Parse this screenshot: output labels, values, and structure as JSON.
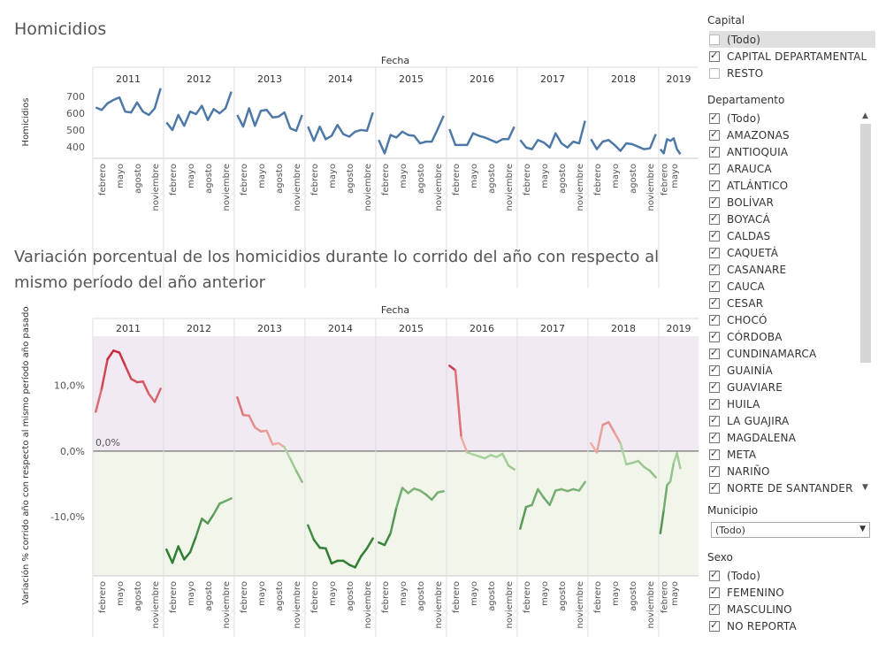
{
  "chart1_title": "Homicidios",
  "chart2_title": "Variación porcentual de los homicidios durante lo corrido del año con respecto al mismo período del año anterior",
  "chart1": {
    "header": "Fecha",
    "ylabel": "Homicidios",
    "years": [
      "2011",
      "2012",
      "2013",
      "2014",
      "2015",
      "2016",
      "2017",
      "2018",
      "2019"
    ],
    "month_labels": [
      "febrero",
      "mayo",
      "agosto",
      "noviembre"
    ],
    "yticks": [
      "700",
      "600",
      "500",
      "400"
    ]
  },
  "chart2": {
    "header": "Fecha",
    "ylabel": "Variación % corrido año con respecto al mismo período año pasado",
    "yticks": [
      "10,0%",
      "0,0%",
      "-10,0%"
    ],
    "ref_label": "0,0%"
  },
  "sidebar": {
    "capital_title": "Capital",
    "capital_items": [
      {
        "label": "(Todo)",
        "checked": false
      },
      {
        "label": "CAPITAL DEPARTAMENTAL",
        "checked": true
      },
      {
        "label": "RESTO",
        "checked": false
      }
    ],
    "departamento_title": "Departamento",
    "departamento_items": [
      "(Todo)",
      "AMAZONAS",
      "ANTIOQUIA",
      "ARAUCA",
      "ATLÁNTICO",
      "BOLÍVAR",
      "BOYACÁ",
      "CALDAS",
      "CAQUETÁ",
      "CASANARE",
      "CAUCA",
      "CESAR",
      "CHOCÓ",
      "CÓRDOBA",
      "CUNDINAMARCA",
      "GUAINÍA",
      "GUAVIARE",
      "HUILA",
      "LA GUAJIRA",
      "MAGDALENA",
      "META",
      "NARIÑO",
      "NORTE DE SANTANDER"
    ],
    "municipio_title": "Municipio",
    "municipio_value": "(Todo)",
    "sexo_title": "Sexo",
    "sexo_items": [
      "(Todo)",
      "FEMENINO",
      "MASCULINO",
      "NO REPORTA"
    ]
  },
  "colors": {
    "line_blue": "#4e79a7",
    "pos_band": "#f1eaf3",
    "neg_band": "#f1f5ea",
    "red_strong": "#c8283d",
    "green_strong": "#2f7d32"
  },
  "chart_data": [
    {
      "type": "line",
      "title": "Homicidios",
      "xlabel": "Fecha",
      "ylabel": "Homicidios",
      "ylim": [
        330,
        770
      ],
      "series": [
        {
          "values": [
            635,
            620,
            660,
            680,
            695,
            610,
            605,
            665,
            610,
            590,
            630,
            750,
            545,
            500,
            590,
            525,
            610,
            595,
            645,
            560,
            625,
            600,
            630,
            730,
            590,
            520,
            630,
            525,
            615,
            620,
            575,
            580,
            605,
            510,
            495,
            590,
            520,
            435,
            520,
            445,
            465,
            530,
            475,
            460,
            490,
            500,
            495,
            605,
            440,
            360,
            470,
            455,
            490,
            470,
            465,
            420,
            430,
            430,
            505,
            585,
            505,
            410,
            410,
            410,
            480,
            465,
            455,
            440,
            425,
            445,
            445,
            520,
            440,
            395,
            385,
            440,
            425,
            395,
            480,
            420,
            395,
            430,
            420,
            555,
            445,
            385,
            430,
            440,
            410,
            375,
            420,
            415,
            400,
            385,
            390,
            475,
            385,
            360,
            445,
            435,
            450,
            385,
            355
          ]
        }
      ]
    },
    {
      "type": "line",
      "title": "Variación porcentual de los homicidios durante lo corrido del año con respecto al mismo período del año anterior",
      "xlabel": "Fecha",
      "ylabel": "Variación % corrido año con respecto al mismo período año pasado",
      "ylim": [
        -19,
        17.5
      ],
      "series": [
        {
          "values": [
            6,
            9.5,
            14,
            15.3,
            15,
            13,
            11,
            10.5,
            10.6,
            8.7,
            7.5,
            9.5,
            -15,
            -17,
            -14.5,
            -16.5,
            -15.4,
            -13,
            -10.3,
            -11,
            -9.6,
            -8,
            -7.6,
            -7.2,
            8.2,
            5.5,
            5.4,
            3.6,
            3,
            3.1,
            1,
            1.2,
            0.6,
            -1.2,
            -3,
            -4.7,
            -11.3,
            -13.5,
            -14.7,
            -14.8,
            -17.1,
            -16.7,
            -16.7,
            -17.3,
            -17.7,
            -16,
            -14.8,
            -13.3,
            -13.9,
            -14.3,
            -12.5,
            -8.6,
            -5.6,
            -6.4,
            -5.7,
            -6,
            -6.6,
            -7.4,
            -6.3,
            -6.1,
            13,
            12.3,
            2.1,
            -0.2,
            -0.5,
            -0.8,
            -1.1,
            -0.6,
            -0.9,
            -0.4,
            -2.2,
            -2.8,
            -11.8,
            -8.5,
            -8.2,
            -5.8,
            -7.1,
            -8.2,
            -6,
            -5.8,
            -6.1,
            -5.8,
            -6,
            -4.7,
            1.2,
            -0.2,
            4,
            4.4,
            2.8,
            1.2,
            -2,
            -1.8,
            -1.5,
            -2.4,
            -3,
            -4,
            -12.5,
            -9,
            -5.2,
            -4.6,
            -1.8,
            -0.3,
            -2.6
          ]
        }
      ]
    }
  ]
}
